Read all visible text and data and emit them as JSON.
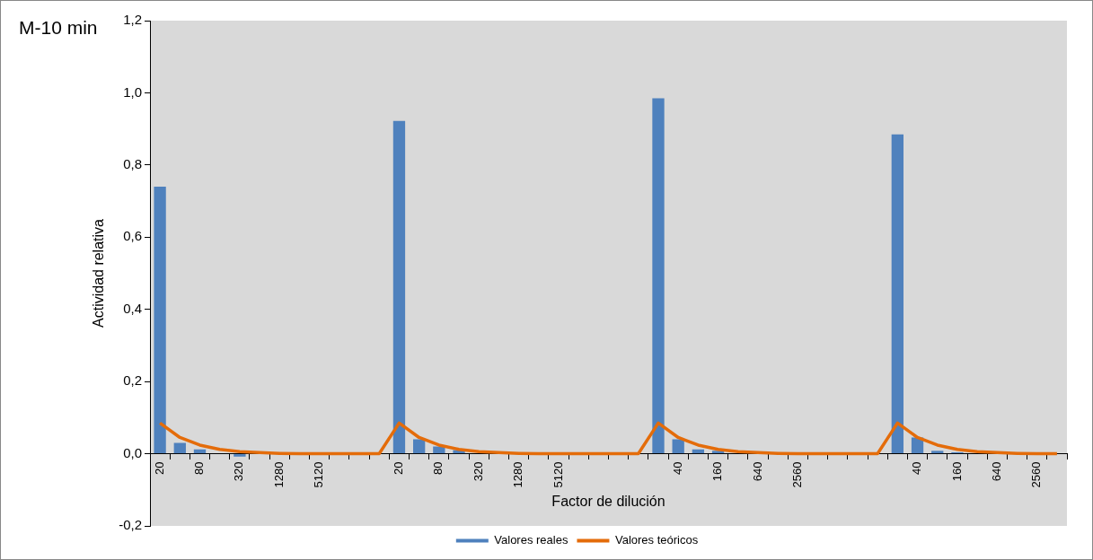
{
  "chart_data": {
    "type": "bar",
    "annotations": [
      "M-10 min"
    ],
    "xlabel": "Factor de dilución",
    "ylabel": "Actividad relativa",
    "categories": [
      "20",
      null,
      "80",
      null,
      "320",
      null,
      "1280",
      null,
      "5120",
      null,
      null,
      null,
      "20",
      null,
      "80",
      null,
      "320",
      null,
      "1280",
      null,
      "5120",
      null,
      null,
      null,
      null,
      null,
      "40",
      null,
      "160",
      null,
      "640",
      null,
      "2560",
      null,
      null,
      null,
      null,
      null,
      "40",
      null,
      "160",
      null,
      "640",
      null,
      "2560",
      null
    ],
    "series": [
      {
        "name": "Valores reales",
        "color": "#4f81bd",
        "values": [
          0.74,
          0.03,
          0.012,
          0,
          -0.008,
          0,
          0,
          0,
          0,
          0,
          0,
          0,
          0.922,
          0.04,
          0.02,
          0.01,
          null,
          0,
          0,
          0,
          0,
          0,
          0,
          0,
          0,
          0.985,
          0.04,
          0.012,
          0.008,
          null,
          0,
          0,
          0,
          0,
          0,
          0,
          0,
          0.885,
          0.045,
          0.008,
          0.004,
          null,
          0,
          0,
          0,
          0
        ]
      },
      {
        "name": "Valores teóricos",
        "type": "line",
        "color": "#e46c0a",
        "values": [
          0.085,
          0.045,
          0.024,
          0.012,
          0.006,
          0.003,
          0.001,
          0,
          0,
          0,
          0,
          0,
          0.085,
          0.045,
          0.024,
          0.012,
          0.006,
          0.003,
          0.001,
          0,
          0,
          0,
          0,
          0,
          0,
          0.085,
          0.045,
          0.024,
          0.012,
          0.006,
          0.003,
          0.001,
          0,
          0,
          0,
          0,
          0,
          0.085,
          0.045,
          0.024,
          0.012,
          0.006,
          0.003,
          0.001,
          0,
          0
        ]
      }
    ],
    "ylim": [
      -0.2,
      1.2
    ],
    "yticks": [
      {
        "value": -0.2,
        "label": "-0,2"
      },
      {
        "value": 0,
        "label": "0,0"
      },
      {
        "value": 0.2,
        "label": "0,2"
      },
      {
        "value": 0.4,
        "label": "0,4"
      },
      {
        "value": 0.6,
        "label": "0,6"
      },
      {
        "value": 0.8,
        "label": "0,8"
      },
      {
        "value": 1.0,
        "label": "1,0"
      },
      {
        "value": 1.2,
        "label": "1,2"
      }
    ],
    "grid": false,
    "legend": "bottom",
    "marker": "none",
    "line_style": "solid"
  }
}
